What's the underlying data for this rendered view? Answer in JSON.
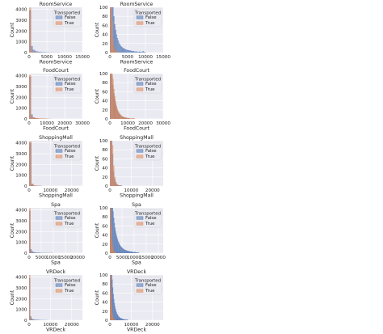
{
  "colors": {
    "false": "#4c72b0",
    "true": "#dd8452",
    "panel_bg": "#eaeaf2",
    "grid": "#ffffff"
  },
  "legend": {
    "title": "Transported",
    "entries": [
      "False",
      "True"
    ]
  },
  "chart_data": [
    {
      "type": "bar",
      "variable": "RoomService",
      "title": "RoomService",
      "xlabel": "RoomService",
      "ylabel": "Count",
      "xlim": [
        0,
        15000
      ],
      "ylim": [
        0,
        4200
      ],
      "xticks": [
        0,
        5000,
        10000,
        15000
      ],
      "yticks": [
        0,
        1000,
        2000,
        3000,
        4000
      ],
      "bin_width": 500,
      "series": [
        {
          "name": "False",
          "values": [
            3900,
            600,
            250,
            150,
            90,
            60,
            40,
            25,
            15,
            10,
            8,
            5,
            3,
            2,
            2,
            1,
            1
          ]
        },
        {
          "name": "True",
          "values": [
            4150,
            150,
            30,
            10,
            5,
            2,
            1
          ]
        }
      ]
    },
    {
      "type": "bar",
      "variable": "RoomService",
      "title": "RoomService",
      "xlabel": "RoomService",
      "ylabel": "Count",
      "xlim": [
        0,
        15000
      ],
      "ylim": [
        0,
        100
      ],
      "xticks": [
        0,
        5000,
        10000,
        15000
      ],
      "yticks": [
        0,
        20,
        40,
        60,
        80,
        100
      ],
      "bin_width": 250,
      "series": [
        {
          "name": "False",
          "values": [
            100,
            100,
            100,
            100,
            80,
            62,
            50,
            40,
            32,
            26,
            20,
            17,
            14,
            12,
            10,
            9,
            8,
            7,
            6,
            6,
            5,
            5,
            4,
            4,
            3,
            3,
            3,
            2,
            2,
            2,
            2,
            1,
            1,
            2,
            1,
            1,
            1,
            3,
            1,
            1
          ]
        },
        {
          "name": "True",
          "values": [
            100,
            100,
            70,
            30,
            14,
            7,
            4,
            2,
            1,
            1
          ]
        }
      ]
    },
    {
      "type": "bar",
      "variable": "FoodCourt",
      "title": "FoodCourt",
      "xlabel": "FoodCourt",
      "ylabel": "Count",
      "xlim": [
        0,
        30000
      ],
      "ylim": [
        0,
        4200
      ],
      "xticks": [
        0,
        10000,
        20000,
        30000
      ],
      "yticks": [
        0,
        1000,
        2000,
        3000,
        4000
      ],
      "bin_width": 1000,
      "series": [
        {
          "name": "False",
          "values": [
            3900,
            400,
            120,
            60,
            30,
            15,
            8,
            5,
            3,
            2
          ]
        },
        {
          "name": "True",
          "values": [
            4050,
            250,
            120,
            80,
            50,
            35,
            25,
            15,
            10,
            8,
            5,
            3
          ]
        }
      ]
    },
    {
      "type": "bar",
      "variable": "FoodCourt",
      "title": "FoodCourt",
      "xlabel": "FoodCourt",
      "ylabel": "Count",
      "xlim": [
        0,
        30000
      ],
      "ylim": [
        0,
        100
      ],
      "xticks": [
        0,
        10000,
        20000,
        30000
      ],
      "yticks": [
        0,
        20,
        40,
        60,
        80,
        100
      ],
      "bin_width": 500,
      "series": [
        {
          "name": "False",
          "values": [
            100,
            100,
            95,
            75,
            56,
            43,
            33,
            25,
            19,
            14,
            11,
            9,
            7,
            5,
            4,
            3,
            3,
            2,
            2,
            1,
            1,
            1
          ]
        },
        {
          "name": "True",
          "values": [
            100,
            100,
            100,
            88,
            66,
            50,
            38,
            29,
            22,
            17,
            13,
            10,
            8,
            6,
            5,
            4,
            3,
            3,
            2,
            2,
            2,
            1,
            1,
            1,
            1,
            1,
            1,
            1
          ]
        }
      ]
    },
    {
      "type": "bar",
      "variable": "ShoppingMall",
      "title": "ShoppingMall",
      "xlabel": "ShoppingMall",
      "ylabel": "Count",
      "xlim": [
        0,
        25000
      ],
      "ylim": [
        0,
        4200
      ],
      "xticks": [
        0,
        10000,
        20000
      ],
      "yticks": [
        0,
        1000,
        2000,
        3000,
        4000
      ],
      "bin_width": 1000,
      "series": [
        {
          "name": "False",
          "values": [
            4000,
            150,
            40,
            10,
            3,
            1
          ]
        },
        {
          "name": "True",
          "values": [
            4100,
            200,
            30,
            8,
            2,
            1
          ]
        }
      ]
    },
    {
      "type": "bar",
      "variable": "ShoppingMall",
      "title": "ShoppingMall",
      "xlabel": "ShoppingMall",
      "ylabel": "Count",
      "xlim": [
        0,
        25000
      ],
      "ylim": [
        0,
        100
      ],
      "xticks": [
        0,
        10000,
        20000
      ],
      "yticks": [
        0,
        20,
        40,
        60,
        80,
        100
      ],
      "bin_width": 500,
      "series": [
        {
          "name": "False",
          "values": [
            100,
            100,
            70,
            32,
            16,
            8,
            4,
            2,
            1,
            1,
            1
          ]
        },
        {
          "name": "True",
          "values": [
            100,
            100,
            90,
            45,
            20,
            9,
            4,
            2,
            1,
            1
          ]
        }
      ]
    },
    {
      "type": "bar",
      "variable": "Spa",
      "title": "Spa",
      "xlabel": "Spa",
      "ylabel": "Count",
      "xlim": [
        0,
        22000
      ],
      "ylim": [
        0,
        4200
      ],
      "xticks": [
        0,
        5000,
        10000,
        15000,
        20000
      ],
      "yticks": [
        0,
        1000,
        2000,
        3000,
        4000
      ],
      "bin_width": 500,
      "series": [
        {
          "name": "False",
          "values": [
            3900,
            350,
            160,
            90,
            60,
            40,
            30,
            20,
            15,
            10,
            8,
            6,
            5,
            4,
            3,
            2,
            2,
            1,
            1,
            1
          ]
        },
        {
          "name": "True",
          "values": [
            4150,
            80,
            20,
            5,
            2,
            1
          ]
        }
      ]
    },
    {
      "type": "bar",
      "variable": "Spa",
      "title": "Spa",
      "xlabel": "Spa",
      "ylabel": "Count",
      "xlim": [
        0,
        22000
      ],
      "ylim": [
        0,
        100
      ],
      "xticks": [
        0,
        5000,
        10000,
        15000,
        20000
      ],
      "yticks": [
        0,
        20,
        40,
        60,
        80,
        100
      ],
      "bin_width": 250,
      "series": [
        {
          "name": "False",
          "values": [
            100,
            100,
            100,
            100,
            100,
            92,
            78,
            66,
            56,
            48,
            42,
            36,
            31,
            27,
            24,
            21,
            18,
            16,
            14,
            13,
            11,
            10,
            9,
            8,
            7,
            7,
            6,
            6,
            5,
            5,
            4,
            4,
            4,
            3,
            3,
            3,
            3,
            2,
            2,
            2,
            2,
            2,
            2,
            1,
            1,
            1,
            1,
            1
          ]
        },
        {
          "name": "True",
          "values": [
            100,
            100,
            60,
            30,
            16,
            8,
            4,
            2,
            1,
            1
          ]
        }
      ]
    },
    {
      "type": "bar",
      "variable": "VRDeck",
      "title": "VRDeck",
      "xlabel": "VRDeck",
      "ylabel": "Count",
      "xlim": [
        0,
        25000
      ],
      "ylim": [
        0,
        4200
      ],
      "xticks": [
        0,
        10000,
        20000
      ],
      "yticks": [
        0,
        1000,
        2000,
        3000,
        4000
      ],
      "bin_width": 500,
      "series": [
        {
          "name": "False",
          "values": [
            3900,
            350,
            150,
            80,
            50,
            35,
            25,
            18,
            12,
            9,
            6,
            4,
            3,
            2,
            2,
            1,
            1
          ]
        },
        {
          "name": "True",
          "values": [
            4200,
            80,
            20,
            6,
            2,
            1
          ]
        }
      ]
    },
    {
      "type": "bar",
      "variable": "VRDeck",
      "title": "VRDeck",
      "xlabel": "VRDeck",
      "ylabel": "Count",
      "xlim": [
        0,
        25000
      ],
      "ylim": [
        0,
        100
      ],
      "xticks": [
        0,
        10000,
        20000
      ],
      "yticks": [
        0,
        20,
        40,
        60,
        80,
        100
      ],
      "bin_width": 250,
      "series": [
        {
          "name": "False",
          "values": [
            100,
            100,
            100,
            100,
            90,
            72,
            58,
            47,
            38,
            31,
            25,
            21,
            17,
            14,
            12,
            10,
            8,
            7,
            6,
            5,
            4,
            4,
            3,
            3,
            2,
            2,
            2,
            2,
            1,
            1,
            1,
            1,
            1,
            1
          ]
        },
        {
          "name": "True",
          "values": [
            100,
            100,
            62,
            30,
            15,
            8,
            4,
            2,
            1,
            1
          ]
        }
      ]
    }
  ]
}
